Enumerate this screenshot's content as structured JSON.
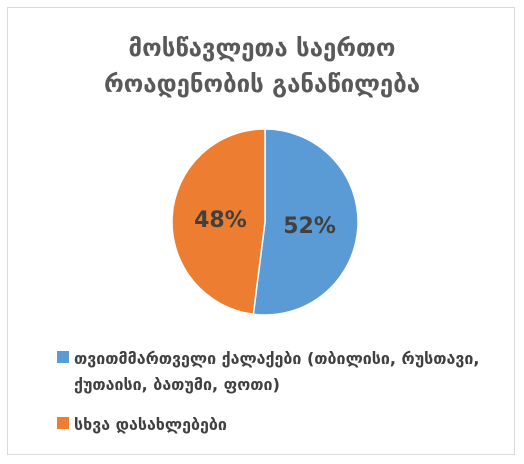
{
  "chart_data": {
    "type": "pie",
    "title": "მოსწავლეთა საერთო\nროადენობის განაწილება",
    "categories": [
      "თვითმმართველი ქალაქები (თბილისი, რუსთავი, ქუთაისი, ბათუმი, ფოთი)",
      "სხვა დასახლებები"
    ],
    "values": [
      52,
      48
    ],
    "data_labels": [
      "52%",
      "48%"
    ],
    "colors": [
      "#5b9bd5",
      "#ed7d31"
    ],
    "legend_position": "bottom"
  }
}
